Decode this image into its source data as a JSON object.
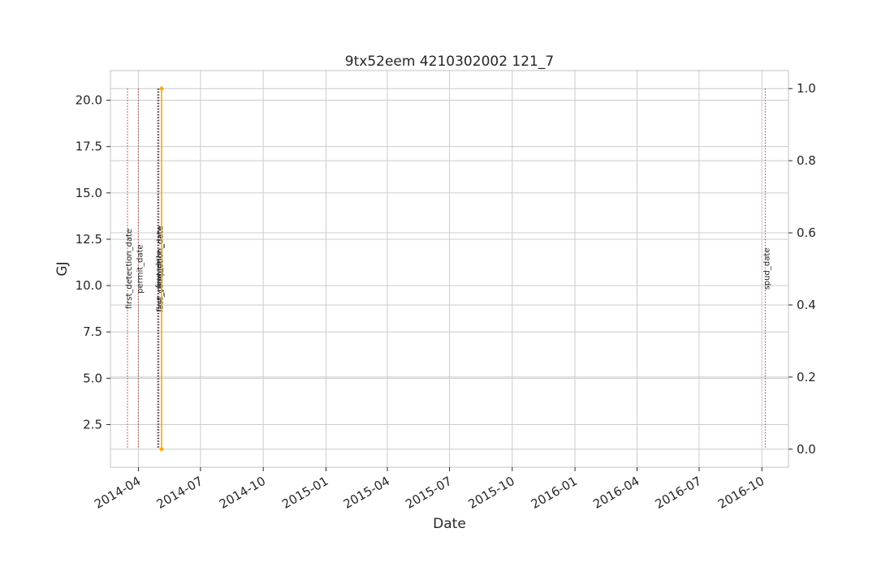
{
  "chart_data": {
    "type": "line",
    "title": "9tx52eem 4210302002 121_7",
    "xlabel": "Date",
    "ylabel": "GJ",
    "ylabel_color": "#1f77b4",
    "x_ticks": [
      "2014-04",
      "2014-07",
      "2014-10",
      "2015-01",
      "2015-04",
      "2015-07",
      "2015-10",
      "2016-01",
      "2016-04",
      "2016-07",
      "2016-10"
    ],
    "x_range": [
      "2014-02-19",
      "2016-11-09"
    ],
    "y_left": {
      "range": [
        0.2,
        21.6
      ],
      "ticks": [
        "2.5",
        "5.0",
        "7.5",
        "10.0",
        "12.5",
        "15.0",
        "17.5",
        "20.0"
      ]
    },
    "y_right": {
      "range": [
        -0.05,
        1.05
      ],
      "ticks": [
        "0.0",
        "0.2",
        "0.4",
        "0.6",
        "0.8",
        "1.0"
      ]
    },
    "grid": true,
    "series": [
      {
        "color": "#ffa500",
        "marker": "diamond",
        "axis": "right",
        "points": [
          {
            "x": "2014-05-05",
            "y": 1.0
          },
          {
            "x": "2014-05-05",
            "y": 0.0
          }
        ]
      }
    ],
    "events": [
      {
        "label": "first_detection_date",
        "date": "2014-03-16",
        "color": "#c0504d"
      },
      {
        "label": "permit_date",
        "date": "2014-04-01",
        "color": "#c0504d"
      },
      {
        "label": "frac_date",
        "date": "2014-04-29",
        "color": "#c0504d"
      },
      {
        "label": "first_production_date",
        "date": "2014-04-30",
        "color": "#4d4d4d"
      },
      {
        "label": "last_completion_date",
        "date": "2014-05-01",
        "color": "#4d4d4d"
      },
      {
        "label": "spud_date",
        "date": "2016-10-06",
        "color": "#c0504d"
      }
    ],
    "colors": {
      "grid": "#cccccc",
      "frame": "#cccccc",
      "text": "#262626"
    }
  }
}
